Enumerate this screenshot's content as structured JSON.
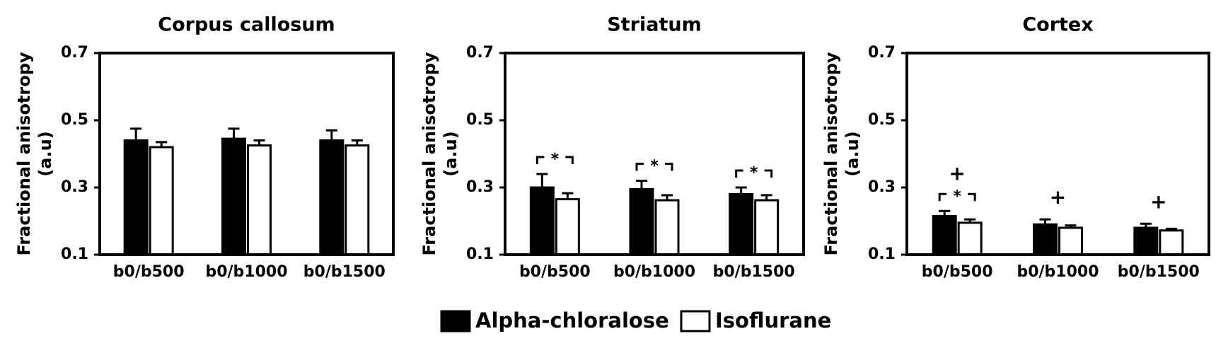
{
  "chart_data": [
    {
      "type": "bar",
      "title": "Corpus callosum",
      "ylabel": [
        "Fractional anisotropy",
        "(a.u)"
      ],
      "categories": [
        "b0/b500",
        "b0/b1000",
        "b0/b1500"
      ],
      "series": [
        {
          "name": "Alpha-chloralose",
          "color": "#000000",
          "values": [
            0.44,
            0.445,
            0.44
          ],
          "errors": [
            0.035,
            0.03,
            0.03
          ]
        },
        {
          "name": "Isoflurane",
          "color": "#ffffff",
          "values": [
            0.42,
            0.425,
            0.425
          ],
          "errors": [
            0.015,
            0.015,
            0.015
          ]
        }
      ],
      "ylim": [
        0.1,
        0.7
      ],
      "yticks": [
        0.1,
        0.3,
        0.5,
        0.7
      ]
    },
    {
      "type": "bar",
      "title": "Striatum",
      "ylabel": [
        "Fractional anisotropy",
        "(a.u)"
      ],
      "categories": [
        "b0/b500",
        "b0/b1000",
        "b0/b1500"
      ],
      "series": [
        {
          "name": "Alpha-chloralose",
          "color": "#000000",
          "values": [
            0.3,
            0.295,
            0.28
          ],
          "errors": [
            0.04,
            0.025,
            0.02
          ]
        },
        {
          "name": "Isoflurane",
          "color": "#ffffff",
          "values": [
            0.265,
            0.262,
            0.262
          ],
          "errors": [
            0.018,
            0.015,
            0.015
          ]
        }
      ],
      "annotations": [
        "*",
        "*",
        "*"
      ],
      "ylim": [
        0.1,
        0.7
      ],
      "yticks": [
        0.1,
        0.3,
        0.5,
        0.7
      ]
    },
    {
      "type": "bar",
      "title": "Cortex",
      "ylabel": [
        "Fractional anisotropy",
        "(a.u)"
      ],
      "categories": [
        "b0/b500",
        "b0/b1000",
        "b0/b1500"
      ],
      "series": [
        {
          "name": "Alpha-chloralose",
          "color": "#000000",
          "values": [
            0.215,
            0.19,
            0.18
          ],
          "errors": [
            0.015,
            0.015,
            0.012
          ]
        },
        {
          "name": "Isoflurane",
          "color": "#ffffff",
          "values": [
            0.195,
            0.18,
            0.172
          ],
          "errors": [
            0.01,
            0.007,
            0.005
          ]
        }
      ],
      "annotations": [
        "*",
        null,
        null
      ],
      "markers": [
        "+",
        "+",
        "+"
      ],
      "ylim": [
        0.1,
        0.7
      ],
      "yticks": [
        0.1,
        0.3,
        0.5,
        0.7
      ]
    }
  ]
}
